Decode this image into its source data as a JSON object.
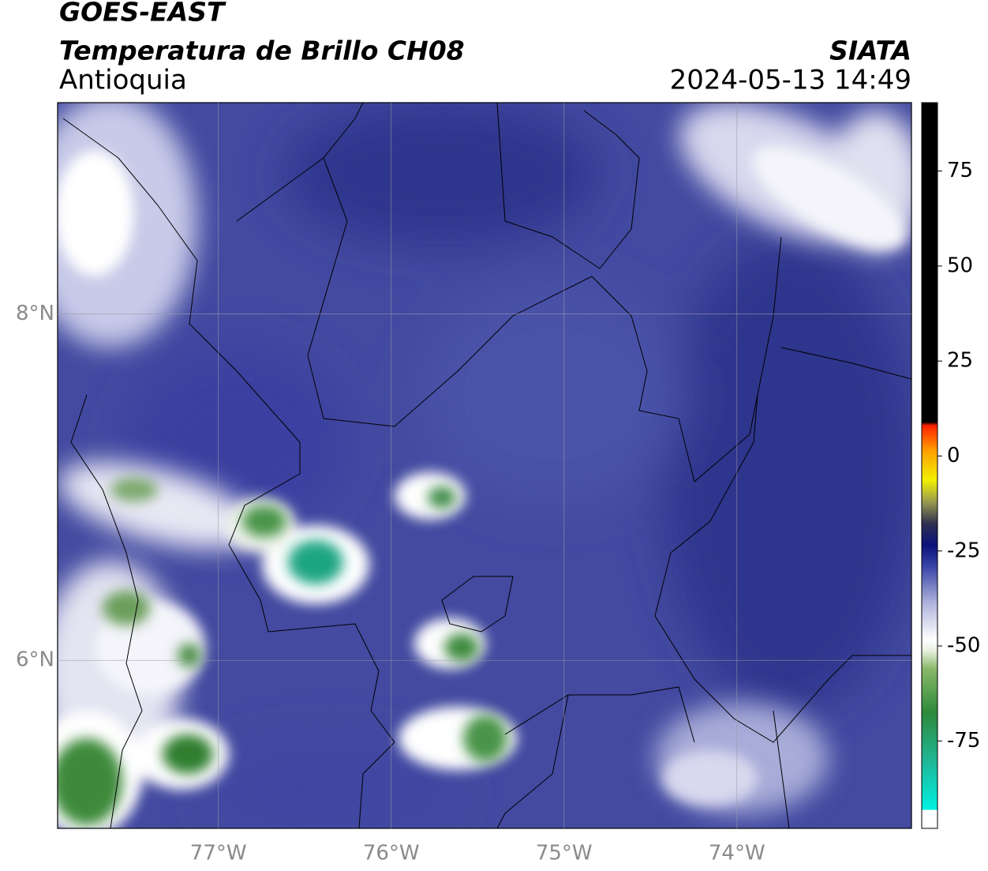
{
  "header": {
    "satellite": "GOES-EAST",
    "product": "Temperatura de Brillo CH08",
    "region": "Antioquia",
    "source": "SIATA",
    "datetime": "2024-05-13 14:49"
  },
  "map": {
    "xlim": [
      -77.93,
      -72.99
    ],
    "ylim": [
      5.03,
      9.22
    ],
    "xticks": [
      {
        "value": -77,
        "label": "77°W"
      },
      {
        "value": -76,
        "label": "76°W"
      },
      {
        "value": -75,
        "label": "75°W"
      },
      {
        "value": -74,
        "label": "74°W"
      }
    ],
    "yticks": [
      {
        "value": 6,
        "label": "6°N"
      },
      {
        "value": 8,
        "label": "8°N"
      }
    ],
    "grid": true
  },
  "colorbar": {
    "lim": [
      -98,
      93
    ],
    "ticks": [
      -75,
      -50,
      -25,
      0,
      25,
      50,
      75
    ]
  }
}
